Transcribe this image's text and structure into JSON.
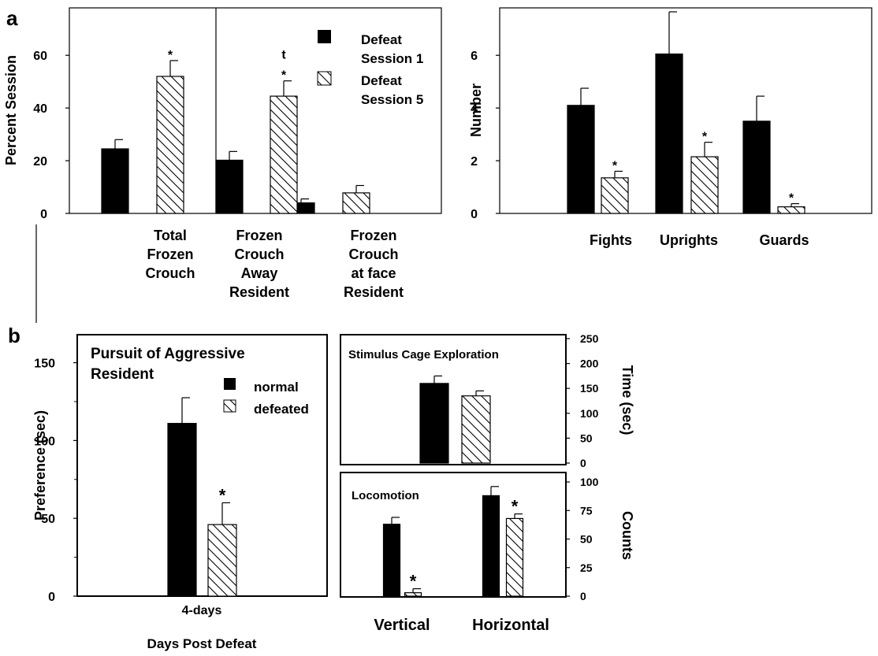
{
  "panel_labels": {
    "a": "a",
    "b": "b"
  },
  "significance_marker": "*",
  "colors": {
    "bar_series_1": "#000000",
    "bar_series_2_fill": "#ffffff",
    "hatch_stroke": "#000000"
  },
  "legend_a": {
    "items": [
      {
        "line1": "Defeat",
        "line2": "Session 1",
        "style": "solid"
      },
      {
        "line1": "Defeat",
        "line2": "Session 5",
        "style": "hatched"
      }
    ]
  },
  "legend_b": {
    "items": [
      {
        "label": "normal",
        "style": "solid"
      },
      {
        "label": "defeated",
        "style": "hatched"
      }
    ]
  },
  "chart_data": [
    {
      "id": "a-left",
      "type": "bar",
      "ylabel": "Percent Session",
      "ylim": [
        0,
        78
      ],
      "yticks": [
        0,
        20,
        40,
        60
      ],
      "categories": [
        [
          "Total",
          "Frozen",
          "Crouch"
        ],
        [
          "Frozen",
          "Crouch",
          "Away",
          "Resident"
        ],
        [
          "Frozen",
          "Crouch",
          "at face",
          "Resident"
        ]
      ],
      "series": [
        {
          "name": "Defeat Session 1",
          "style": "solid",
          "values": [
            24.5,
            20.2,
            4.0
          ],
          "errors": [
            3.5,
            3.3,
            1.5
          ]
        },
        {
          "name": "Defeat Session 5",
          "style": "hatched",
          "values": [
            52.0,
            44.5,
            7.8
          ],
          "errors": [
            6.0,
            5.8,
            2.8
          ]
        }
      ],
      "annotations": [
        {
          "category": 0,
          "series": 1,
          "lines": [
            "*"
          ]
        },
        {
          "category": 1,
          "series": 1,
          "lines": [
            "t",
            "*"
          ]
        }
      ]
    },
    {
      "id": "a-right",
      "type": "bar",
      "ylabel": "Number",
      "ylim": [
        0,
        7.8
      ],
      "yticks": [
        0,
        2,
        4,
        6
      ],
      "categories": [
        [
          "Fights"
        ],
        [
          "Uprights"
        ],
        [
          "Guards"
        ]
      ],
      "series": [
        {
          "name": "Defeat Session 1",
          "style": "solid",
          "values": [
            4.1,
            6.05,
            3.5
          ],
          "errors": [
            0.65,
            1.6,
            0.95
          ]
        },
        {
          "name": "Defeat Session 5",
          "style": "hatched",
          "values": [
            1.35,
            2.15,
            0.25
          ],
          "errors": [
            0.25,
            0.55,
            0.12
          ]
        }
      ],
      "annotations": [
        {
          "category": 0,
          "series": 1,
          "lines": [
            "*"
          ]
        },
        {
          "category": 1,
          "series": 1,
          "lines": [
            "*"
          ]
        },
        {
          "category": 2,
          "series": 1,
          "lines": [
            "*"
          ]
        }
      ]
    },
    {
      "id": "b-left",
      "type": "bar",
      "title_lines": [
        "Pursuit of Aggressive",
        "Resident"
      ],
      "ylabel": "Preference (sec)",
      "xlabel": "Days Post Defeat",
      "ylim": [
        0,
        168
      ],
      "yticks": [
        0,
        50,
        100,
        150
      ],
      "categories": [
        [
          "4-days"
        ]
      ],
      "series": [
        {
          "name": "normal",
          "style": "solid",
          "values": [
            111
          ],
          "errors": [
            16.5
          ]
        },
        {
          "name": "defeated",
          "style": "hatched",
          "values": [
            46
          ],
          "errors": [
            14
          ]
        }
      ],
      "annotations": [
        {
          "category": 0,
          "series": 1,
          "lines": [
            "*"
          ]
        }
      ]
    },
    {
      "id": "b-right-top",
      "type": "bar",
      "title": "Stimulus Cage Exploration",
      "ylabel": "Time (sec)",
      "ylim": [
        0,
        250
      ],
      "yticks": [
        0,
        50,
        100,
        150,
        200,
        250
      ],
      "categories": [
        [
          ""
        ]
      ],
      "series": [
        {
          "name": "normal",
          "style": "solid",
          "values": [
            160
          ],
          "errors": [
            15
          ]
        },
        {
          "name": "defeated",
          "style": "hatched",
          "values": [
            135
          ],
          "errors": [
            10
          ]
        }
      ],
      "annotations": []
    },
    {
      "id": "b-right-bottom",
      "type": "bar",
      "title": "Locomotion",
      "ylabel": "Counts",
      "ylim": [
        0,
        100
      ],
      "yticks": [
        0,
        25,
        50,
        75,
        100
      ],
      "categories": [
        [
          "Vertical"
        ],
        [
          "Horizontal"
        ]
      ],
      "series": [
        {
          "name": "normal",
          "style": "solid",
          "values": [
            63,
            88
          ],
          "errors": [
            6,
            8
          ]
        },
        {
          "name": "defeated",
          "style": "hatched",
          "values": [
            3,
            68
          ],
          "errors": [
            3.5,
            4
          ]
        }
      ],
      "annotations": [
        {
          "category": 0,
          "series": 1,
          "lines": [
            "*"
          ]
        },
        {
          "category": 1,
          "series": 1,
          "lines": [
            "*"
          ]
        }
      ]
    }
  ]
}
